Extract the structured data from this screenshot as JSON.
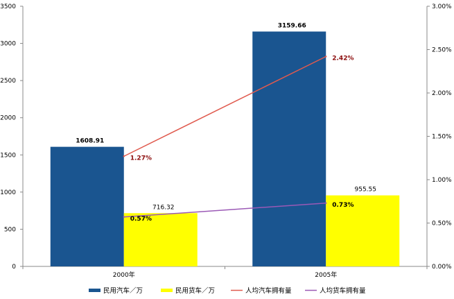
{
  "chart_data": {
    "type": "bar",
    "categories": [
      "2000年",
      "2005年"
    ],
    "series": [
      {
        "name": "民用汽车／万",
        "type": "bar",
        "axis": "left",
        "values": [
          1608.91,
          3159.66
        ],
        "color": "#1a5590",
        "labels": [
          "1608.91",
          "3159.66"
        ],
        "label_bold": true
      },
      {
        "name": "民用货车／万",
        "type": "bar",
        "axis": "left",
        "values": [
          716.32,
          955.55
        ],
        "color": "#ffff00",
        "labels": [
          "716.32",
          "955.55"
        ],
        "label_bold": false
      },
      {
        "name": "人均汽车拥有量",
        "type": "line",
        "axis": "right",
        "values": [
          1.27,
          2.42
        ],
        "color": "#e05a4e",
        "labels": [
          "1.27%",
          "2.42%"
        ],
        "label_color": "#8b0a0a"
      },
      {
        "name": "人均货车拥有量",
        "type": "line",
        "axis": "right",
        "values": [
          0.57,
          0.73
        ],
        "color": "#9b59b6",
        "labels": [
          "0.57%",
          "0.73%"
        ],
        "label_color": "#000000"
      }
    ],
    "y_left": {
      "ylim": [
        0,
        3500
      ],
      "ticks": [
        "0",
        "500",
        "1000",
        "1500",
        "2000",
        "2500",
        "3000",
        "3500"
      ]
    },
    "y_right": {
      "ylim": [
        0,
        3.0
      ],
      "ticks": [
        "0.00%",
        "0.50%",
        "1.00%",
        "1.50%",
        "2.00%",
        "2.50%",
        "3.00%"
      ]
    },
    "grid": false,
    "legend_position": "bottom"
  }
}
